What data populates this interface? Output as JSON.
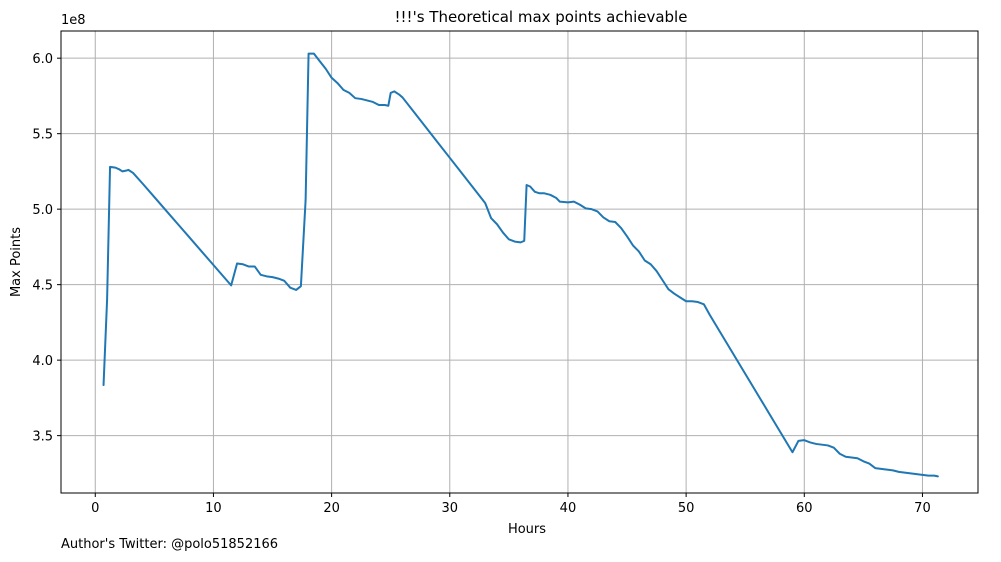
{
  "footnote": "Author's Twitter: @polo51852166",
  "chart_data": {
    "type": "line",
    "title": "!!!'s Theoretical max points achievable",
    "xlabel": "Hours",
    "ylabel": "Max Points",
    "y_multiplier_label": "1e8",
    "xlim": [
      -2.9,
      74.7
    ],
    "ylim": [
      3.12,
      6.18
    ],
    "xticks": [
      0,
      10,
      20,
      30,
      40,
      50,
      60,
      70
    ],
    "yticks": [
      3.5,
      4.0,
      4.5,
      5.0,
      5.5,
      6.0
    ],
    "xtick_labels": [
      "0",
      "10",
      "20",
      "30",
      "40",
      "50",
      "60",
      "70"
    ],
    "ytick_labels": [
      "3.5",
      "4.0",
      "4.5",
      "5.0",
      "5.5",
      "6.0"
    ],
    "grid": true,
    "line_color": "#1f77b4",
    "series": [
      {
        "points": [
          [
            0.7,
            3.835
          ],
          [
            1.0,
            4.4
          ],
          [
            1.25,
            5.28
          ],
          [
            1.7,
            5.275
          ],
          [
            2.0,
            5.265
          ],
          [
            2.3,
            5.25
          ],
          [
            2.6,
            5.255
          ],
          [
            2.8,
            5.26
          ],
          [
            3.2,
            5.24
          ],
          [
            4.0,
            5.17
          ],
          [
            5.0,
            5.08
          ],
          [
            6.0,
            4.99
          ],
          [
            7.0,
            4.9
          ],
          [
            8.0,
            4.81
          ],
          [
            9.0,
            4.72
          ],
          [
            10.0,
            4.63
          ],
          [
            11.0,
            4.54
          ],
          [
            11.5,
            4.495
          ],
          [
            12.0,
            4.64
          ],
          [
            12.5,
            4.635
          ],
          [
            13.0,
            4.62
          ],
          [
            13.5,
            4.62
          ],
          [
            14.0,
            4.565
          ],
          [
            14.5,
            4.555
          ],
          [
            15.0,
            4.55
          ],
          [
            15.5,
            4.54
          ],
          [
            16.0,
            4.525
          ],
          [
            16.5,
            4.48
          ],
          [
            17.0,
            4.465
          ],
          [
            17.4,
            4.49
          ],
          [
            17.8,
            5.06
          ],
          [
            18.05,
            6.03
          ],
          [
            18.5,
            6.03
          ],
          [
            19.0,
            5.98
          ],
          [
            19.5,
            5.93
          ],
          [
            20.0,
            5.87
          ],
          [
            20.5,
            5.835
          ],
          [
            21.0,
            5.79
          ],
          [
            21.5,
            5.77
          ],
          [
            22.0,
            5.735
          ],
          [
            22.5,
            5.73
          ],
          [
            23.0,
            5.72
          ],
          [
            23.5,
            5.71
          ],
          [
            24.0,
            5.69
          ],
          [
            24.5,
            5.69
          ],
          [
            24.8,
            5.685
          ],
          [
            25.0,
            5.77
          ],
          [
            25.3,
            5.78
          ],
          [
            25.7,
            5.76
          ],
          [
            26.0,
            5.74
          ],
          [
            27.0,
            5.64
          ],
          [
            28.0,
            5.54
          ],
          [
            29.0,
            5.44
          ],
          [
            30.0,
            5.34
          ],
          [
            31.0,
            5.24
          ],
          [
            32.0,
            5.14
          ],
          [
            33.0,
            5.04
          ],
          [
            33.5,
            4.94
          ],
          [
            34.0,
            4.9
          ],
          [
            34.5,
            4.845
          ],
          [
            35.0,
            4.8
          ],
          [
            35.5,
            4.785
          ],
          [
            36.0,
            4.78
          ],
          [
            36.3,
            4.79
          ],
          [
            36.5,
            5.16
          ],
          [
            36.8,
            5.15
          ],
          [
            37.2,
            5.115
          ],
          [
            37.6,
            5.105
          ],
          [
            38.0,
            5.105
          ],
          [
            38.5,
            5.095
          ],
          [
            39.0,
            5.075
          ],
          [
            39.3,
            5.05
          ],
          [
            40.0,
            5.045
          ],
          [
            40.5,
            5.05
          ],
          [
            41.0,
            5.03
          ],
          [
            41.5,
            5.005
          ],
          [
            42.0,
            5.0
          ],
          [
            42.5,
            4.985
          ],
          [
            43.0,
            4.945
          ],
          [
            43.5,
            4.92
          ],
          [
            44.0,
            4.915
          ],
          [
            44.5,
            4.875
          ],
          [
            45.0,
            4.82
          ],
          [
            45.5,
            4.76
          ],
          [
            46.0,
            4.72
          ],
          [
            46.5,
            4.66
          ],
          [
            47.0,
            4.635
          ],
          [
            47.5,
            4.59
          ],
          [
            48.0,
            4.53
          ],
          [
            48.5,
            4.47
          ],
          [
            49.0,
            4.44
          ],
          [
            49.5,
            4.415
          ],
          [
            50.0,
            4.39
          ],
          [
            50.5,
            4.39
          ],
          [
            51.0,
            4.385
          ],
          [
            51.5,
            4.37
          ],
          [
            52.0,
            4.3
          ],
          [
            53.0,
            4.17
          ],
          [
            54.0,
            4.04
          ],
          [
            55.0,
            3.91
          ],
          [
            56.0,
            3.78
          ],
          [
            57.0,
            3.65
          ],
          [
            58.0,
            3.52
          ],
          [
            59.0,
            3.39
          ],
          [
            59.5,
            3.465
          ],
          [
            60.0,
            3.47
          ],
          [
            60.5,
            3.455
          ],
          [
            61.0,
            3.445
          ],
          [
            61.5,
            3.44
          ],
          [
            62.0,
            3.435
          ],
          [
            62.5,
            3.42
          ],
          [
            63.0,
            3.38
          ],
          [
            63.5,
            3.36
          ],
          [
            64.0,
            3.355
          ],
          [
            64.5,
            3.35
          ],
          [
            65.0,
            3.33
          ],
          [
            65.5,
            3.315
          ],
          [
            66.0,
            3.285
          ],
          [
            66.5,
            3.28
          ],
          [
            67.0,
            3.275
          ],
          [
            67.5,
            3.27
          ],
          [
            68.0,
            3.26
          ],
          [
            68.5,
            3.255
          ],
          [
            69.0,
            3.25
          ],
          [
            69.5,
            3.245
          ],
          [
            70.0,
            3.24
          ],
          [
            70.5,
            3.235
          ],
          [
            71.0,
            3.235
          ],
          [
            71.3,
            3.23
          ]
        ]
      }
    ]
  }
}
